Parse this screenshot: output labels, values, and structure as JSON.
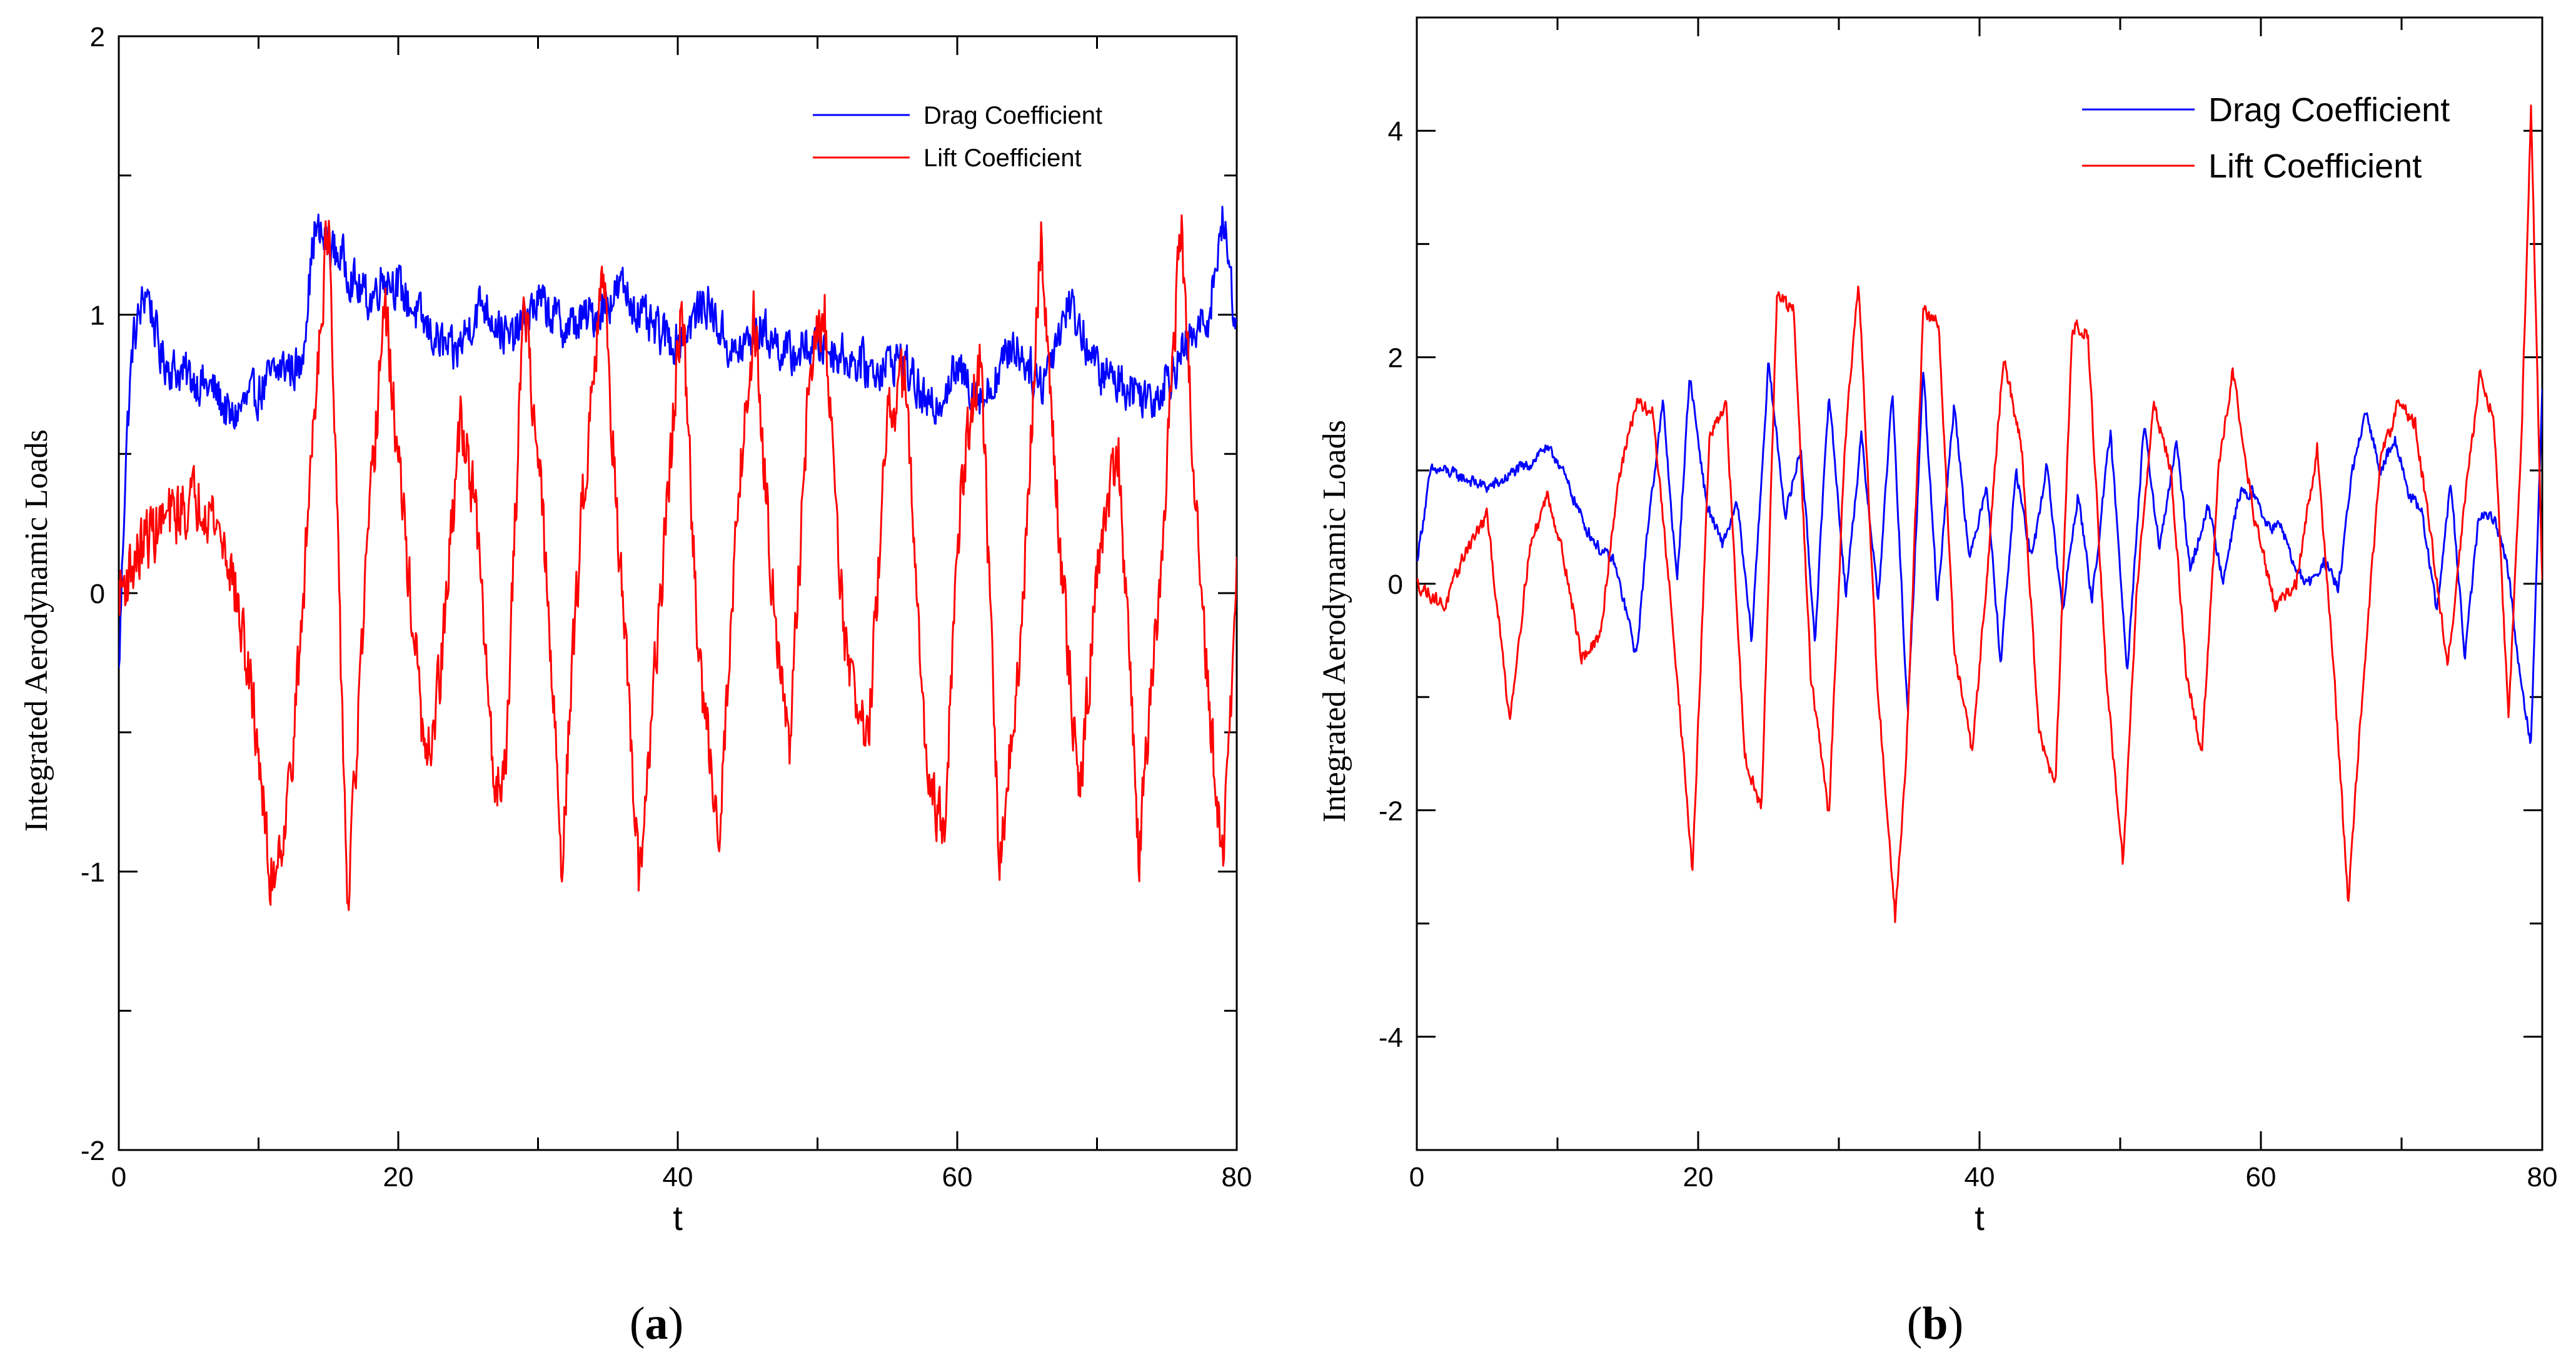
{
  "chart_data": [
    {
      "panel_label": "a",
      "type": "line",
      "title": "",
      "xlabel": "t",
      "ylabel": "Integrated Aerodynamic Loads",
      "xlim": [
        0,
        80
      ],
      "ylim": [
        -2,
        2
      ],
      "x_ticks": [
        0,
        20,
        40,
        60,
        80
      ],
      "y_ticks": [
        -2,
        -1,
        0,
        1,
        2
      ],
      "x_minor_step": 10,
      "y_minor_step": 0.5,
      "grid": false,
      "legend_position": "top-right",
      "series": [
        {
          "name": "Drag Coefficient",
          "color": "#0000ff",
          "x": [
            0,
            0.5,
            1,
            2,
            3,
            4,
            5,
            6,
            7,
            8,
            9,
            10,
            11,
            12,
            13,
            14,
            15,
            16,
            17,
            18,
            19,
            20,
            22,
            24,
            26,
            28,
            30,
            32,
            34,
            36,
            38,
            40,
            42,
            44,
            46,
            48,
            50,
            52,
            54,
            56,
            58,
            60,
            62,
            64,
            66,
            68,
            70,
            72,
            74,
            76,
            78,
            79,
            80
          ],
          "y": [
            -0.3,
            0.5,
            0.9,
            1.1,
            0.85,
            0.8,
            0.78,
            0.75,
            0.72,
            0.62,
            0.68,
            0.72,
            0.78,
            0.82,
            0.8,
            1.3,
            1.25,
            1.2,
            1.1,
            1.05,
            1.15,
            1.1,
            0.95,
            0.85,
            1.05,
            0.9,
            1.05,
            0.95,
            1.0,
            1.1,
            0.95,
            0.9,
            1.05,
            0.85,
            0.95,
            0.85,
            0.9,
            0.85,
            0.8,
            0.85,
            0.65,
            0.8,
            0.7,
            0.9,
            0.75,
            1.05,
            0.8,
            0.75,
            0.7,
            0.85,
            1.0,
            1.35,
            0.95
          ],
          "noise": 0.09
        },
        {
          "name": "Lift Coefficient",
          "color": "#ff0000",
          "x": [
            0,
            1,
            2,
            3,
            4,
            5,
            6,
            7,
            8,
            9,
            10,
            10.8,
            12,
            13,
            14,
            15,
            16.4,
            17.5,
            19,
            20.5,
            22,
            23,
            24.5,
            25.5,
            27,
            27.8,
            29,
            30.3,
            31.7,
            33,
            34.6,
            36,
            37.2,
            38.5,
            40.3,
            41.5,
            43,
            44.3,
            45.5,
            46.6,
            48,
            49.4,
            50.5,
            52,
            53.6,
            55,
            56.3,
            57.5,
            59,
            60.3,
            61.7,
            63,
            64.5,
            66,
            67.3,
            68.8,
            70,
            71.5,
            73,
            74.6,
            76,
            77,
            78,
            79,
            80
          ],
          "y": [
            0,
            0.1,
            0.2,
            0.25,
            0.28,
            0.32,
            0.35,
            0.25,
            0.1,
            -0.2,
            -0.55,
            -1.05,
            -0.8,
            -0.2,
            0.7,
            1.35,
            -1.15,
            -0.1,
            1.05,
            0.2,
            -0.65,
            -0.3,
            0.65,
            0.3,
            -0.75,
            -0.5,
            1.1,
            0.3,
            -0.95,
            0.2,
            1.2,
            0.0,
            -1.05,
            -0.2,
            1.05,
            -0.25,
            -0.85,
            0.35,
            1.0,
            0.15,
            -0.6,
            0.8,
            1.0,
            -0.2,
            -0.55,
            0.6,
            0.8,
            -0.45,
            -0.9,
            0.4,
            0.85,
            -0.95,
            -0.25,
            1.3,
            0.2,
            -0.75,
            0.1,
            0.55,
            -0.95,
            0.1,
            1.35,
            0.35,
            -0.4,
            -1.0,
            0.05
          ],
          "noise": 0.13
        }
      ]
    },
    {
      "panel_label": "b",
      "type": "line",
      "title": "",
      "xlabel": "t",
      "ylabel": "Integrated Aerodynamic Loads",
      "xlim": [
        0,
        80
      ],
      "ylim": [
        -5,
        5
      ],
      "x_ticks": [
        0,
        20,
        40,
        60,
        80
      ],
      "y_ticks": [
        -4,
        -2,
        0,
        2,
        4
      ],
      "x_minor_step": 10,
      "y_minor_step": 1,
      "grid": false,
      "legend_position": "top-right",
      "series": [
        {
          "name": "Drag Coefficient",
          "color": "#0000ff",
          "x": [
            0,
            1,
            2,
            3,
            4,
            5,
            6,
            7,
            8,
            9,
            10,
            11,
            12,
            13,
            14,
            15,
            15.6,
            16.5,
            17.5,
            18.5,
            19.4,
            20.6,
            21.7,
            22.8,
            23.8,
            25,
            26.2,
            27.3,
            28.3,
            29.3,
            30.5,
            31.6,
            32.8,
            33.8,
            34.9,
            36,
            37,
            38.2,
            39.3,
            40.5,
            41.5,
            42.6,
            43.7,
            44.8,
            45.9,
            47,
            48,
            49.3,
            50.5,
            51.7,
            52.8,
            54,
            55,
            56.2,
            57.3,
            58.5,
            59.5,
            60.5,
            61.5,
            62.5,
            63.5,
            64.5,
            65.5,
            66.5,
            67.5,
            68.5,
            69.5,
            70.5,
            71.5,
            72.5,
            73.5,
            74.5,
            75.5,
            76.5,
            77.5,
            78.5,
            79.2,
            80
          ],
          "y": [
            0.2,
            1.0,
            1.0,
            0.95,
            0.9,
            0.85,
            0.9,
            1.0,
            1.05,
            1.2,
            1.1,
            0.8,
            0.5,
            0.3,
            0.2,
            -0.3,
            -0.65,
            0.6,
            1.6,
            0.0,
            1.85,
            0.7,
            0.35,
            0.7,
            -0.5,
            1.95,
            0.6,
            1.2,
            -0.5,
            1.7,
            -0.1,
            1.3,
            -0.15,
            1.7,
            -1.2,
            1.9,
            -0.15,
            1.6,
            0.2,
            0.9,
            -0.7,
            1.0,
            0.2,
            1.05,
            -0.25,
            0.8,
            -0.15,
            1.35,
            -0.75,
            1.4,
            0.3,
            1.25,
            0.1,
            0.7,
            0.05,
            0.8,
            0.8,
            0.5,
            0.5,
            0.1,
            0.0,
            0.2,
            -0.05,
            1.0,
            1.5,
            1.0,
            1.3,
            0.8,
            0.6,
            -0.25,
            0.9,
            -0.65,
            0.6,
            0.6,
            0.2,
            -0.9,
            -1.4,
            1.7
          ],
          "noise": 0.06
        },
        {
          "name": "Lift Coefficient",
          "color": "#ff0000",
          "x": [
            0,
            2,
            3.5,
            5,
            6.6,
            8,
            9.3,
            10.5,
            11.7,
            13,
            14.3,
            15.6,
            16.8,
            18.3,
            19.6,
            20.8,
            22,
            23.3,
            24.5,
            25.6,
            26.8,
            28,
            29.3,
            30.4,
            31.4,
            32.7,
            34,
            34.8,
            36,
            37.1,
            38.2,
            39.5,
            40.6,
            41.7,
            43,
            44.2,
            45.4,
            46.6,
            47.7,
            49,
            50.2,
            51.2,
            52.4,
            53.6,
            54.7,
            55.8,
            57,
            58,
            59.5,
            61,
            62.5,
            64,
            65.2,
            66.2,
            67.2,
            68.5,
            69.8,
            71,
            72.1,
            73.3,
            74.4,
            75.6,
            76.6,
            77.6,
            78.5,
            79.2,
            80
          ],
          "y": [
            0.0,
            -0.2,
            0.3,
            0.6,
            -1.2,
            0.3,
            0.8,
            0.2,
            -0.65,
            -0.5,
            0.9,
            1.6,
            1.5,
            -0.5,
            -2.55,
            1.3,
            1.55,
            -1.5,
            -2.0,
            2.55,
            2.4,
            -0.8,
            -2.05,
            1.2,
            2.7,
            -0.8,
            -2.95,
            -1.5,
            2.4,
            2.3,
            -0.6,
            -1.5,
            0.2,
            2.0,
            1.2,
            -1.3,
            -1.8,
            2.3,
            2.2,
            -0.8,
            -2.5,
            0.0,
            1.6,
            1.0,
            -0.8,
            -1.5,
            1.0,
            1.9,
            0.6,
            -0.2,
            0.0,
            1.2,
            -0.8,
            -2.8,
            -1.0,
            1.1,
            1.6,
            1.4,
            0.4,
            -0.7,
            0.6,
            1.9,
            1.4,
            -1.2,
            1.2,
            4.2,
            0.0
          ],
          "noise": 0.07
        }
      ]
    }
  ],
  "captions": {
    "a_open": "(",
    "a_letter": "a",
    "a_close": ")",
    "b_open": "(",
    "b_letter": "b",
    "b_close": ")"
  }
}
